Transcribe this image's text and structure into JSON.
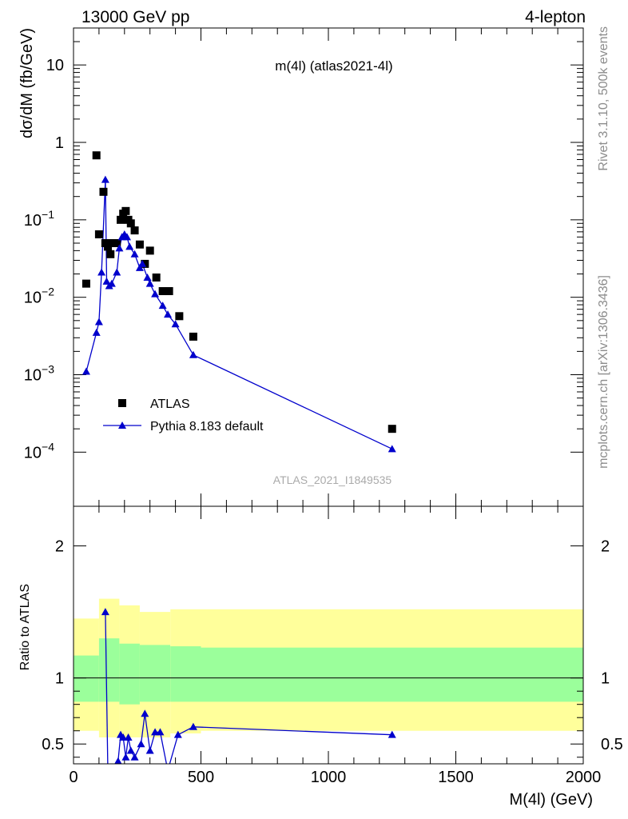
{
  "header": {
    "left": "13000 GeV pp",
    "right": "4-lepton"
  },
  "side_labels": {
    "top": "Rivet 3.1.10,  500k events",
    "bottom": "mcplots.cern.ch [arXiv:1306.3436]"
  },
  "chart_data": [
    {
      "type": "scatter",
      "title": "m(4l) (atlas2021-4l)",
      "watermark": "ATLAS_2021_I1849535",
      "xlabel": "M(4l) (GeV)",
      "ylabel": "dσ/dM (fb/GeV)",
      "xlim": [
        0,
        2000
      ],
      "ylim": [
        2e-05,
        30
      ],
      "yscale": "log",
      "xticks": [
        {
          "v": 0,
          "label": "0"
        },
        {
          "v": 500,
          "label": "500"
        },
        {
          "v": 1000,
          "label": "1000"
        },
        {
          "v": 1500,
          "label": "1500"
        },
        {
          "v": 2000,
          "label": "2000"
        }
      ],
      "yticks": [
        {
          "v": 10,
          "base": "10",
          "exp": ""
        },
        {
          "v": 1,
          "base": "1",
          "exp": ""
        },
        {
          "v": 0.1,
          "base": "10",
          "exp": "−1"
        },
        {
          "v": 0.01,
          "base": "10",
          "exp": "−2"
        },
        {
          "v": 0.001,
          "base": "10",
          "exp": "−3"
        },
        {
          "v": 0.0001,
          "base": "10",
          "exp": "−4"
        }
      ],
      "legend_position": "bottom-left",
      "series": [
        {
          "name": "ATLAS",
          "marker": "square",
          "color": "#000000",
          "x": [
            50,
            90,
            100,
            117.5,
            125,
            135,
            145,
            155,
            170,
            185,
            195,
            205,
            215,
            225,
            240,
            260,
            280,
            300,
            325,
            350,
            375,
            415,
            470,
            1250
          ],
          "y": [
            0.015,
            0.68,
            0.065,
            0.23,
            0.05,
            0.045,
            0.036,
            0.05,
            0.05,
            0.1,
            0.12,
            0.13,
            0.1,
            0.09,
            0.073,
            0.048,
            0.027,
            0.04,
            0.018,
            0.012,
            0.012,
            0.0057,
            0.0031,
            0.0002
          ]
        },
        {
          "name": "Pythia 8.183 default",
          "marker": "triangle",
          "color": "#0000cc",
          "x": [
            50,
            90,
            100,
            110,
            125,
            130,
            140,
            150,
            170,
            180,
            190,
            200,
            210,
            220,
            240,
            260,
            270,
            290,
            300,
            320,
            350,
            370,
            400,
            470,
            1250
          ],
          "y": [
            0.0011,
            0.0035,
            0.0048,
            0.021,
            0.33,
            0.016,
            0.014,
            0.015,
            0.021,
            0.043,
            0.06,
            0.065,
            0.06,
            0.045,
            0.036,
            0.024,
            0.027,
            0.018,
            0.015,
            0.011,
            0.0078,
            0.006,
            0.0045,
            0.0018,
            0.00011
          ]
        }
      ]
    },
    {
      "type": "line",
      "ylabel": "Ratio to ATLAS",
      "xlim": [
        0,
        2000
      ],
      "ylim": [
        0.35,
        2.3
      ],
      "yticks": [
        {
          "v": 0.5,
          "label": "0.5"
        },
        {
          "v": 1,
          "label": "1"
        },
        {
          "v": 2,
          "label": "2"
        }
      ],
      "reference_line": 1,
      "band_colors": {
        "inner": "#9bff9b",
        "outer": "#ffff9b"
      },
      "bands": [
        {
          "x": [
            0,
            100
          ],
          "inner": [
            0.82,
            1.17
          ],
          "outer": [
            0.6,
            1.45
          ]
        },
        {
          "x": [
            100,
            180
          ],
          "inner": [
            0.82,
            1.3
          ],
          "outer": [
            0.55,
            1.6
          ]
        },
        {
          "x": [
            180,
            260
          ],
          "inner": [
            0.8,
            1.26
          ],
          "outer": [
            0.55,
            1.55
          ]
        },
        {
          "x": [
            260,
            380
          ],
          "inner": [
            0.82,
            1.25
          ],
          "outer": [
            0.55,
            1.5
          ]
        },
        {
          "x": [
            380,
            500
          ],
          "inner": [
            0.82,
            1.24
          ],
          "outer": [
            0.58,
            1.52
          ]
        },
        {
          "x": [
            500,
            2000
          ],
          "inner": [
            0.82,
            1.23
          ],
          "outer": [
            0.6,
            1.52
          ]
        }
      ],
      "series": [
        {
          "name": "Pythia 8.183 default",
          "color": "#0000cc",
          "x": [
            125,
            135,
            175,
            185,
            195,
            205,
            215,
            225,
            240,
            265,
            280,
            300,
            320,
            340,
            370,
            410,
            470,
            1250
          ],
          "y": [
            1.5,
            0.25,
            0.37,
            0.57,
            0.55,
            0.4,
            0.55,
            0.45,
            0.4,
            0.5,
            0.73,
            0.45,
            0.59,
            0.59,
            0.3,
            0.57,
            0.63,
            0.57
          ]
        }
      ]
    }
  ]
}
